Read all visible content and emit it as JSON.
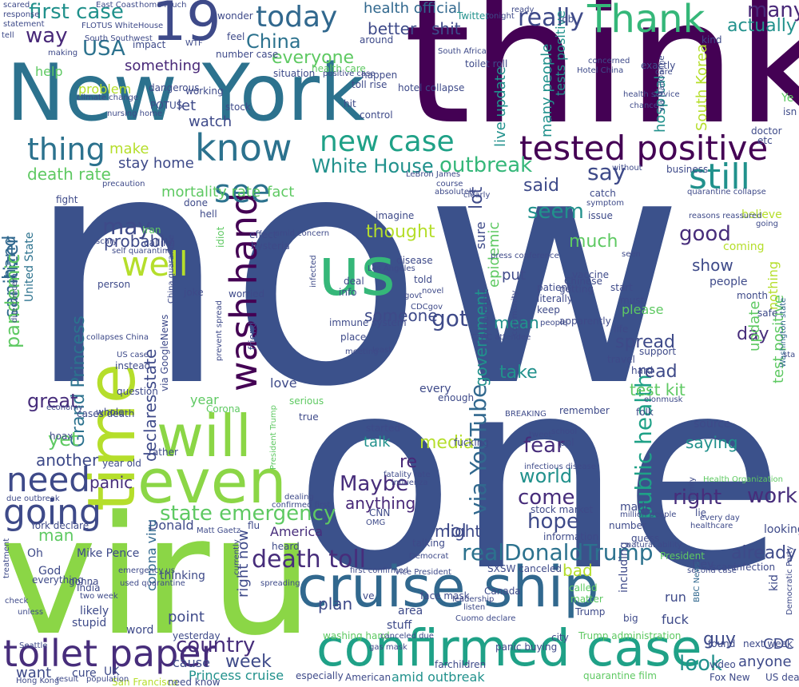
{
  "words": {
    "now": "now",
    "one": "one",
    "think": "think",
    "viru": "viru",
    "new_york": "New York",
    "cruise_ship": "cruise ship",
    "confirmed_case": "confirmed case",
    "time": "time",
    "even": "even",
    "will": "will",
    "wash_hand": "wash hand",
    "us": "us",
    "toilet_paper": "toilet paper",
    "tested_positive": "tested positive",
    "covid_19": "19",
    "thank": "Thank",
    "know": "know",
    "today": "today",
    "new_case": "new case",
    "going": "going",
    "need": "need",
    "well": "well",
    "still": "still",
    "see": "see",
    "real_donald_trump": "realDonaldTrump",
    "death_toll": "death toll",
    "thing": "thing",
    "first_case": "first case",
    "state_emergency": "state emergency",
    "public_health": "public health",
    "via_youtube": "via YouTube",
    "maybe": "Maybe",
    "world": "world",
    "right": "right",
    "work": "work",
    "hope": "hope",
    "come": "come",
    "fear": "fear",
    "already": "already",
    "look": "look",
    "country": "country",
    "week": "week",
    "say": "say",
    "white_house": "White House",
    "outbreak": "outbreak",
    "got": "got",
    "seem": "seem",
    "good": "good",
    "may": "may",
    "way": "way",
    "usa": "USA",
    "china": "China",
    "everyone": "everyone",
    "really": "really",
    "many": "many",
    "actually": "actually",
    "make": "make",
    "death_rate": "death rate",
    "mortality_rate": "mortality rate",
    "stay_home": "stay home",
    "fact": "fact",
    "sanitizer": "sanitizer",
    "hand": "hand",
    "pandemic": "pandemic",
    "grand_princess": "Grand Princess",
    "declares_state": "declares state",
    "great": "great",
    "another": "another",
    "panic": "panic",
    "yet": "yet",
    "said": "said",
    "thought": "thought",
    "someone": "someone",
    "lot": "lot",
    "much": "much",
    "probably": "probably",
    "mean": "mean",
    "government": "government",
    "epidemic": "epidemic",
    "media": "media",
    "re": "re",
    "talk": "talk",
    "anything": "anything",
    "lol": "lol",
    "might": "might",
    "take": "take",
    "read": "read",
    "spread": "spread",
    "day": "day",
    "test_kit": "test kit",
    "test_positive": "test positive",
    "update": "update",
    "show": "show",
    "saying": "saying",
    "live_update": "live update",
    "many_people": "many people",
    "tests_positive": "tests positive",
    "hospital": "hospital",
    "south_korea": "South Korea",
    "health_official": "health official",
    "better": "better",
    "shit": "shit",
    "something": "something",
    "problem": "problem",
    "let": "let",
    "watch": "watch",
    "man": "man",
    "donald": "Donald",
    "america": "America",
    "bad": "bad",
    "plan": "plan",
    "guy": "guy",
    "anyone": "anyone",
    "cdc": "CDC",
    "princess_cruise": "Princess cruise",
    "amid_outbreak": "amid outbreak",
    "cause": "cause",
    "point": "point",
    "want": "want",
    "right_now": "right now",
    "corona_viru": "corona viru",
    "year": "year",
    "love": "love",
    "believe": "believe",
    "really_small": "really",
    "help": "help",
    "first_case_small": "first case",
    "nothing": "nothing",
    "people": "people",
    "coming": "coming",
    "please": "please",
    "put": "put",
    "sure": "sure",
    "info": "info",
    "every": "every",
    "enough": "enough",
    "everything": "everything",
    "thinking": "thinking",
    "including": "including",
    "run": "run",
    "fuck": "fuck",
    "yesterday": "yesterday",
    "stupid": "stupid",
    "likely": "likely",
    "word": "word",
    "oh": "Oh",
    "god": "God",
    "look_small": "looking",
    "number": "number",
    "getting": "getting",
    "support": "support",
    "question": "question",
    "united_state": "United State",
    "collapses_china": "collapses China",
    "twitter": "Twitter",
    "health_care": "health care",
    "made": "made",
    "guess": "guess",
    "folk": "folk",
    "source": "source",
    "stock_market": "stock market",
    "infection": "infection",
    "scare": "scare",
    "hey": "Hey",
    "news": "news",
    "washington_state": "Washington state",
    "fox_news": "Fox New",
    "us_death": "US death",
    "trump_administration": "Trump administration",
    "washing_hand": "washing hand",
    "american": "American",
    "especially": "especially",
    "quarantine_film": "quarantine film",
    "san_francisco": "San Francisco",
    "need_know": "need know",
    "cure": "cure",
    "uk": "UK",
    "mike_pence": "Mike Pence",
    "york_declare": "York declare",
    "sxsw_canceled": "SXSW canceled",
    "face_mask": "face mask",
    "canada": "Canada",
    "area": "area",
    "stuff": "stuff",
    "made_small": "made",
    "breaking": "BREAKING",
    "impact": "impact",
    "immune_system": "immune system",
    "place": "place",
    "least": "least",
    "amid_concern": "amid concern",
    "imagine": "imagine",
    "disease": "disease",
    "deal": "deal",
    "told": "told",
    "infected": "infected",
    "vaccine": "vaccine",
    "chinese": "Chinese",
    "patient": "patient",
    "literally": "literally",
    "keep": "keep",
    "issue": "issue",
    "remember": "remember",
    "travel": "travel",
    "life": "life",
    "apparently": "apparently",
    "must": "must",
    "start": "start",
    "hard": "hard",
    "safe": "safe",
    "month": "month",
    "exactly": "exactly",
    "business": "business",
    "catch": "catch",
    "without": "without",
    "whole": "whole",
    "serious": "serious",
    "true": "true",
    "cases_death": "cases death",
    "corona": "Corona",
    "president_trump": "President Trump",
    "rather": "rather",
    "old": "year old",
    "dealing": "dealing",
    "confirmed_first": "confirmed first",
    "tweet": "tweet",
    "ppl": "ppl",
    "started": "started",
    "fucking": "fucking",
    "leadership": "leadership",
    "information": "information",
    "lie": "lie",
    "healthcare": "healthcare",
    "health_organization": "Health Organization",
    "next_week": "next week",
    "found": "found",
    "video": "video",
    "second_case": "second case",
    "bbc_news": "BBC News",
    "big": "big",
    "called": "called",
    "trump": "Trump",
    "matter": "matter",
    "flu": "flu",
    "gonna": "gonna",
    "india": "India",
    "cnn": "CNN",
    "joke": "joke",
    "person": "person",
    "instead": "instead",
    "worried": "worried",
    "heard": "heard",
    "talking": "talking",
    "currently": "currently",
    "spreading": "spreading",
    "toll_rise": "toll rise",
    "happen": "happen",
    "situation": "situation",
    "positive_case": "positive case",
    "hit": "hit",
    "around": "around",
    "seriously": "seriously",
    "job": "job",
    "called_small": "called",
    "concerned": "concerned",
    "toilet_roll": "toilet roll",
    "south_africa": "South Africa",
    "wonder": "wonder",
    "feel": "feel",
    "number_case": "number case",
    "health_service": "health service",
    "nhs": "NHS",
    "chance": "chance",
    "kind": "kind",
    "ye": "Ye",
    "doctor": "doctor",
    "etc": "etc",
    "hotel_collapse": "hotel collapse",
    "precaution": "precaution",
    "climate_change": "climate change",
    "dangerous": "dangerous",
    "working": "working",
    "sick": "sick",
    "stock": "stock",
    "control": "control",
    "give": "give",
    "done": "done",
    "hell": "hell",
    "effect": "effect",
    "hysteria": "hysteria",
    "idiot": "idiot",
    "calling": "calling",
    "iran": "Iran",
    "self_quarantine": "self quarantine",
    "scary": "scary",
    "china_quarantine": "China quarantine",
    "via_google_news": "via GoogleNews",
    "prevent_spread": "prevent spread",
    "friend": "friend",
    "tonight": "tonight",
    "happening": "happening",
    "ready": "ready",
    "hoax": "hoax",
    "economy": "economy",
    "potus": "POTUS",
    "far": "far",
    "children": "children",
    "city": "city",
    "panic_buying": "panic buying",
    "trump_small": "Trump",
    "listen": "listen",
    "gas_mask": "gas mask",
    "cuomo": "Cuomo declare",
    "ve": "ve",
    "nursing_home": "nursing home",
    "seen": "seen",
    "infectious_disease": "infectious disease",
    "fatality_rate": "fatality rate",
    "omg": "OMG",
    "school": "school",
    "influenza": "influenza",
    "symptom": "symptom",
    "hotel_china": "Hotel China",
    "east_coast": "East Coast",
    "home_much": "home much",
    "sta": "sta",
    "response": "response",
    "statement": "statement",
    "making": "making",
    "tell": "tell",
    "wtf": "WTF",
    "flotus": "FLOTUS WhiteHouse",
    "south_southwest": "South Southwest",
    "top": "top",
    "government_small": "govt",
    "meeting": "meeting",
    "cpac": "CPAC attendee",
    "florida_report": "Florida report",
    "community": "community",
    "apparent": "absolutely",
    "course": "course",
    "los_angeles": "Los Angeles",
    "lebron": "LeBron James",
    "hospital_small": "hospital",
    "clearly": "clearly",
    "mean_small": "mean",
    "novel": "novel",
    "press_conference": "press conference",
    "canceled_due": "canceled due",
    "elonmusk": "elonmusk",
    "quarantine_collapse": "quarantine collapse",
    "reasons_reassured": "reasons reassured",
    "fight": "fight",
    "scared": "scared",
    "prime_minister": "prime minister",
    "matt_gaetz": "Matt Gaetz",
    "via_mailonline": "via MailOnline",
    "many_small": "many",
    "care": "care",
    "family": "family",
    "democratic_party": "Democratic Party",
    "democrat": "Democrat",
    "vice_president": "Vice President",
    "first_confirmed": "first confirmed",
    "cdcgov": "CDCgov",
    "due_concern": "due concern",
    "due_outbreak": "due outbreak",
    "hong_kong": "Hong Kong",
    "result": "result",
    "population": "population",
    "seattle": "Seattle",
    "unless": "unless",
    "check": "check",
    "treatment": "treatment",
    "two_week": "two week",
    "us_case": "US case",
    "emergency_us": "emergency us",
    "used_quarantine": "used quarantine",
    "president": "President",
    "every_day": "every day",
    "million_people": "million people",
    "natural_ability": "natural ability",
    "kid": "kid",
    "isn": "isn",
    "going_small": "going"
  }
}
